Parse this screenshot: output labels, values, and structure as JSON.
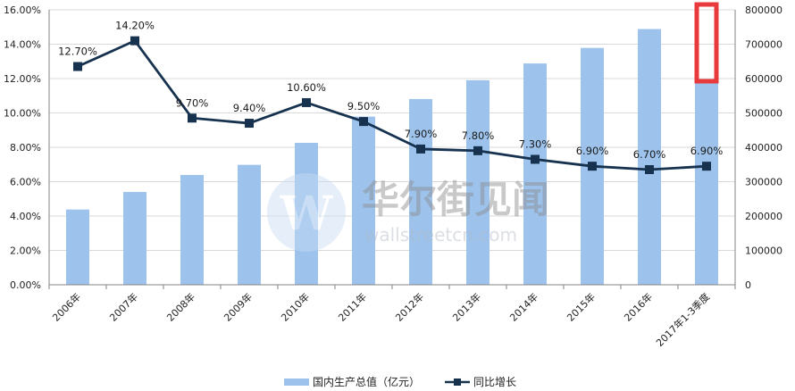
{
  "chart_data": {
    "type": "bar+line",
    "categories": [
      "2006年",
      "2007年",
      "2008年",
      "2009年",
      "2010年",
      "2011年",
      "2012年",
      "2013年",
      "2014年",
      "2015年",
      "2016年",
      "2017年1-3季度"
    ],
    "series": [
      {
        "name": "国内生产总值（亿元）",
        "type": "bar",
        "axis": "right",
        "values": [
          219000,
          270000,
          319500,
          349000,
          413000,
          489300,
          540400,
          595200,
          643900,
          689100,
          744100,
          593300
        ]
      },
      {
        "name": "同比增长",
        "type": "line",
        "axis": "left",
        "values": [
          12.7,
          14.2,
          9.7,
          9.4,
          10.6,
          9.5,
          7.9,
          7.8,
          7.3,
          6.9,
          6.7,
          6.9
        ],
        "labels": [
          "12.70%",
          "14.20%",
          "9.70%",
          "9.40%",
          "10.60%",
          "9.50%",
          "7.90%",
          "7.80%",
          "7.30%",
          "6.90%",
          "6.70%",
          "6.90%"
        ]
      }
    ],
    "left_axis": {
      "ylim": [
        0,
        16
      ],
      "ticks": [
        "0.00%",
        "2.00%",
        "4.00%",
        "6.00%",
        "8.00%",
        "10.00%",
        "12.00%",
        "14.00%",
        "16.00%"
      ]
    },
    "right_axis": {
      "ylim": [
        0,
        800000
      ],
      "ticks": [
        "0",
        "100000",
        "200000",
        "300000",
        "400000",
        "500000",
        "600000",
        "700000",
        "800000"
      ]
    },
    "grid": "horizontal",
    "legend_position": "bottom-center",
    "colors": {
      "bar": "#9dc3ec",
      "line": "#17324f",
      "highlight": "#e8393c"
    },
    "highlight": {
      "category_index": 11
    },
    "watermark": {
      "cn": "华尔街见闻",
      "en": "wallstreetcn.com",
      "logo_letter": "W"
    }
  }
}
